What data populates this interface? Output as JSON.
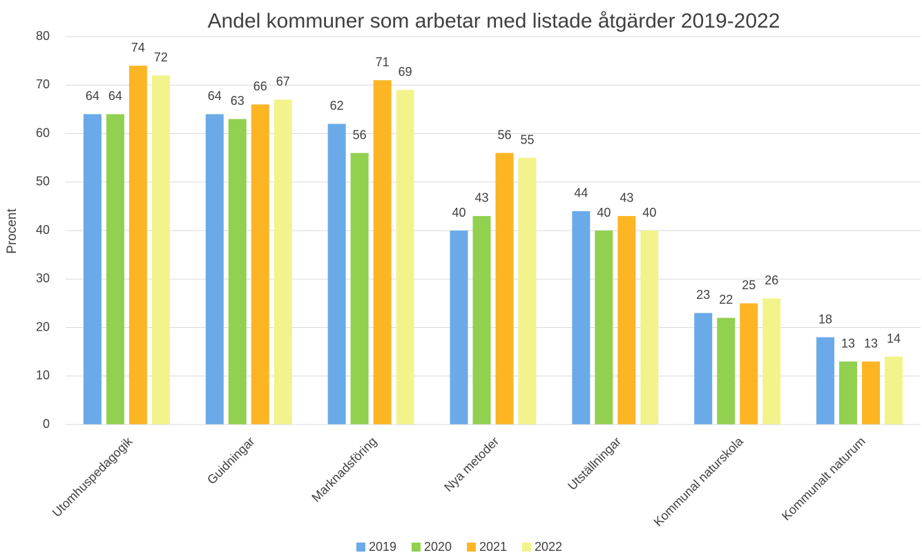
{
  "chart_data": {
    "type": "bar",
    "title": "Andel kommuner som arbetar med listade åtgärder 2019-2022",
    "y_label": "Procent",
    "categories": [
      "Utomhuspedagogik",
      "Guidningar",
      "Marknadsföring",
      "Nya metoder",
      "Utställningar",
      "Kommunal naturskola",
      "Kommunalt naturum"
    ],
    "series": [
      {
        "name": "2019",
        "color": "#6aaae8",
        "values": [
          64,
          64,
          62,
          40,
          44,
          23,
          18
        ]
      },
      {
        "name": "2020",
        "color": "#92d050",
        "values": [
          64,
          63,
          56,
          43,
          40,
          22,
          13
        ]
      },
      {
        "name": "2021",
        "color": "#fdb524",
        "values": [
          74,
          66,
          71,
          56,
          43,
          25,
          13
        ]
      },
      {
        "name": "2022",
        "color": "#f3f38c",
        "values": [
          72,
          67,
          69,
          55,
          40,
          26,
          14
        ]
      }
    ],
    "ylim": [
      0,
      80
    ],
    "yticks": [
      0,
      10,
      20,
      30,
      40,
      50,
      60,
      70,
      80
    ],
    "grid": true,
    "legend": "bottom"
  }
}
